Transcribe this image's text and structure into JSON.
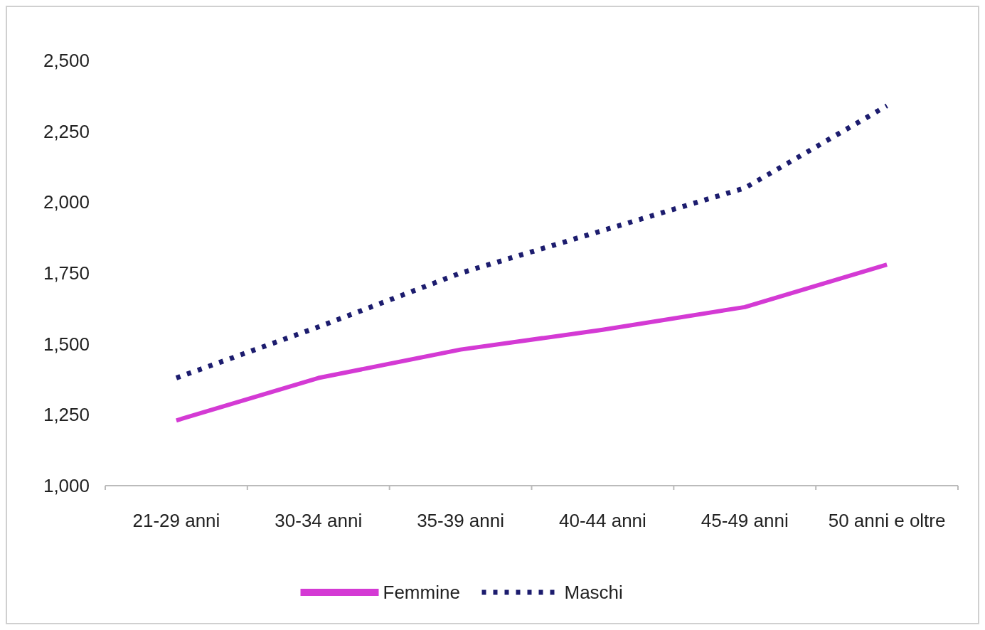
{
  "chart_data": {
    "type": "line",
    "categories": [
      "21-29 anni",
      "30-34 anni",
      "35-39 anni",
      "40-44 anni",
      "45-49 anni",
      "50 anni e oltre"
    ],
    "series": [
      {
        "name": "Femmine",
        "color": "#d43ad4",
        "line_style": "solid",
        "values": [
          1230,
          1380,
          1480,
          1550,
          1630,
          1780
        ]
      },
      {
        "name": "Maschi",
        "color": "#1c1c6e",
        "line_style": "dotted",
        "values": [
          1380,
          1560,
          1750,
          1900,
          2050,
          2340
        ]
      }
    ],
    "ylim": [
      1000,
      2500
    ],
    "yticks": [
      {
        "value": 1000,
        "label": "1,000"
      },
      {
        "value": 1250,
        "label": "1,250"
      },
      {
        "value": 1500,
        "label": "1,500"
      },
      {
        "value": 1750,
        "label": "1,750"
      },
      {
        "value": 2000,
        "label": "2,000"
      },
      {
        "value": 2250,
        "label": "2,250"
      },
      {
        "value": 2500,
        "label": "2,500"
      }
    ],
    "grid": false,
    "legend": "bottom"
  }
}
